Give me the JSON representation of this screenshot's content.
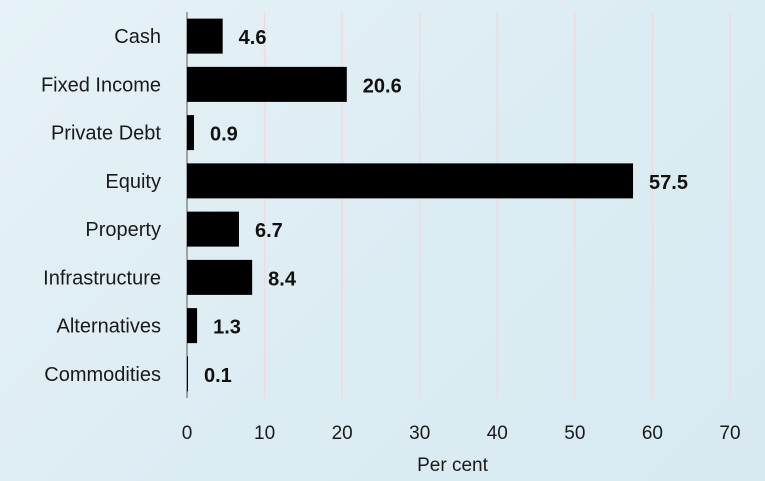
{
  "chart_data": {
    "type": "bar",
    "orientation": "horizontal",
    "categories": [
      "Cash",
      "Fixed Income",
      "Private Debt",
      "Equity",
      "Property",
      "Infrastructure",
      "Alternatives",
      "Commodities"
    ],
    "values": [
      4.6,
      20.6,
      0.9,
      57.5,
      6.7,
      8.4,
      1.3,
      0.1
    ],
    "value_labels": [
      "4.6",
      "20.6",
      "0.9",
      "57.5",
      "6.7",
      "8.4",
      "1.3",
      "0.1"
    ],
    "title": "",
    "xlabel": "Per cent",
    "ylabel": "",
    "xlim": [
      0,
      70
    ],
    "xticks": [
      "0",
      "10",
      "20",
      "30",
      "40",
      "50",
      "60",
      "70"
    ],
    "grid": "vertical",
    "legend": "none",
    "colors": {
      "bar": "#000000",
      "grid": "#f3d9dd",
      "background": "#e1eff5"
    }
  }
}
